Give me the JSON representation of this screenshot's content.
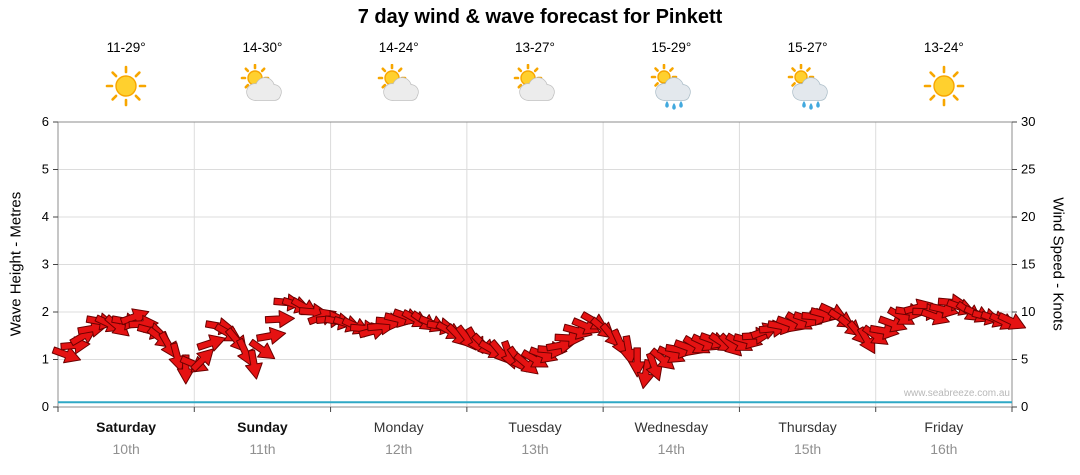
{
  "title": "7 day wind & wave forecast for Pinkett",
  "watermark": "www.seabreeze.com.au",
  "colors": {
    "wind_arrow": "#E51212",
    "wind_arrow_outline": "#6B0000",
    "wave_line": "#2FA8C5",
    "grid": "#DCDCDC",
    "frame": "#8C8C8C",
    "tick": "#444444",
    "sun": "#FFD02E",
    "sun_ray": "#F7A600",
    "rain_drop": "#42A9DE"
  },
  "left_axis": {
    "label": "Wave Height - Metres",
    "min": 0,
    "max": 6,
    "step": 1,
    "ticks": [
      0,
      1,
      2,
      3,
      4,
      5,
      6
    ]
  },
  "right_axis": {
    "label": "Wind Speed - Knots",
    "min": 0,
    "max": 30,
    "step": 5,
    "ticks": [
      0,
      5,
      10,
      15,
      20,
      25,
      30
    ]
  },
  "days": [
    {
      "name": "Saturday",
      "date": "10th",
      "temp": "11-29°",
      "icon": "sunny",
      "bold": true
    },
    {
      "name": "Sunday",
      "date": "11th",
      "temp": "14-30°",
      "icon": "partly-cloudy",
      "bold": true
    },
    {
      "name": "Monday",
      "date": "12th",
      "temp": "14-24°",
      "icon": "partly-cloudy",
      "bold": false
    },
    {
      "name": "Tuesday",
      "date": "13th",
      "temp": "13-27°",
      "icon": "partly-cloudy",
      "bold": false
    },
    {
      "name": "Wednesday",
      "date": "14th",
      "temp": "15-29°",
      "icon": "showers",
      "bold": false
    },
    {
      "name": "Thursday",
      "date": "15th",
      "temp": "15-27°",
      "icon": "showers",
      "bold": false
    },
    {
      "name": "Friday",
      "date": "16th",
      "temp": "13-24°",
      "icon": "sunny",
      "bold": false
    }
  ],
  "chart_data": {
    "type": "line",
    "title": "7 day wind & wave forecast for Pinkett",
    "x_categories": [
      "Saturday 10th",
      "Sunday 11th",
      "Monday 12th",
      "Tuesday 13th",
      "Wednesday 14th",
      "Thursday 15th",
      "Friday 16th"
    ],
    "samples_per_day": 8,
    "left_ylim": [
      0,
      6
    ],
    "right_ylim": [
      0,
      30
    ],
    "grid": true,
    "legend": "none",
    "series": [
      {
        "name": "Wind Speed",
        "units": "knots",
        "axis": "right",
        "style": "red-arrows",
        "values": [
          5.5,
          7.5,
          9,
          8.5,
          9.5,
          8,
          6.5,
          4,
          5,
          8.5,
          7,
          4.5,
          7.5,
          11,
          10.5,
          9.5,
          9,
          8.5,
          8,
          9,
          9.5,
          9,
          8.5,
          7.5,
          7,
          6,
          5.5,
          4.5,
          5.5,
          6.5,
          8,
          9,
          7.5,
          6,
          3.5,
          5,
          6,
          6.5,
          7,
          6.5,
          7,
          8,
          8.5,
          9,
          9.5,
          10,
          8.5,
          7,
          8,
          9.5,
          10.5,
          9.5,
          11,
          10,
          9.5,
          9
        ],
        "directions_deg": [
          20,
          -30,
          10,
          40,
          -20,
          15,
          60,
          90,
          -45,
          10,
          50,
          80,
          -10,
          5,
          30,
          -20,
          10,
          25,
          -15,
          5,
          20,
          35,
          10,
          45,
          60,
          30,
          70,
          40,
          20,
          -10,
          15,
          30,
          50,
          80,
          100,
          40,
          10,
          30,
          20,
          45,
          15,
          -20,
          10,
          30,
          5,
          25,
          40,
          60,
          10,
          30,
          -15,
          20,
          5,
          35,
          15,
          25
        ]
      },
      {
        "name": "Wave Height",
        "units": "metres",
        "axis": "left",
        "style": "flat-teal-line",
        "values": [
          0.1,
          0.1,
          0.1,
          0.1,
          0.1,
          0.1,
          0.1,
          0.1
        ]
      }
    ]
  }
}
